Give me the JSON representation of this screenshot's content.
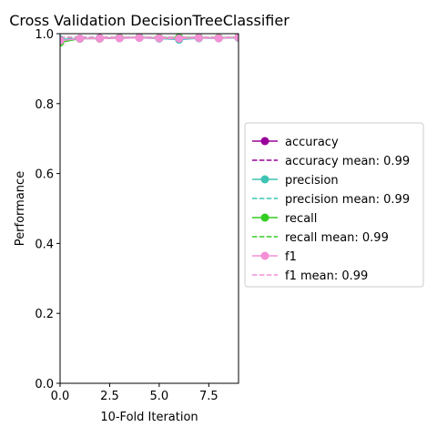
{
  "chart_data": {
    "type": "line",
    "title": "Cross Validation DecisionTreeClassifier",
    "xlabel": "10-Fold Iteration",
    "ylabel": "Performance",
    "xlim": [
      0,
      9
    ],
    "ylim": [
      0,
      1.0
    ],
    "x_ticks": [
      0.0,
      2.5,
      5.0,
      7.5
    ],
    "x_tick_labels": [
      "0.0",
      "2.5",
      "5.0",
      "7.5"
    ],
    "y_ticks": [
      0.0,
      0.2,
      0.4,
      0.6,
      0.8,
      1.0
    ],
    "y_tick_labels": [
      "0.0",
      "0.2",
      "0.4",
      "0.6",
      "0.8",
      "1.0"
    ],
    "grid": false,
    "legend_position": "outside-right",
    "x": [
      0,
      1,
      2,
      3,
      4,
      5,
      6,
      7,
      8,
      9
    ],
    "series": [
      {
        "name": "accuracy",
        "color": "#990099",
        "values": [
          0.982,
          0.986,
          0.987,
          0.988,
          0.989,
          0.987,
          0.986,
          0.988,
          0.987,
          0.989
        ],
        "mean": 0.99,
        "mean_label": "accuracy mean: 0.99"
      },
      {
        "name": "precision",
        "color": "#3fc4b4",
        "values": [
          0.984,
          0.986,
          0.986,
          0.987,
          0.988,
          0.986,
          0.983,
          0.987,
          0.987,
          0.988
        ],
        "mean": 0.99,
        "mean_label": "precision mean: 0.99"
      },
      {
        "name": "recall",
        "color": "#33cc22",
        "values": [
          0.975,
          0.986,
          0.986,
          0.988,
          0.989,
          0.988,
          0.989,
          0.989,
          0.988,
          0.99
        ],
        "mean": 0.99,
        "mean_label": "recall mean: 0.99"
      },
      {
        "name": "f1",
        "color": "#f48fd6",
        "values": [
          0.98,
          0.986,
          0.986,
          0.987,
          0.988,
          0.987,
          0.986,
          0.988,
          0.987,
          0.989
        ],
        "mean": 0.99,
        "mean_label": "f1 mean: 0.99"
      }
    ]
  }
}
